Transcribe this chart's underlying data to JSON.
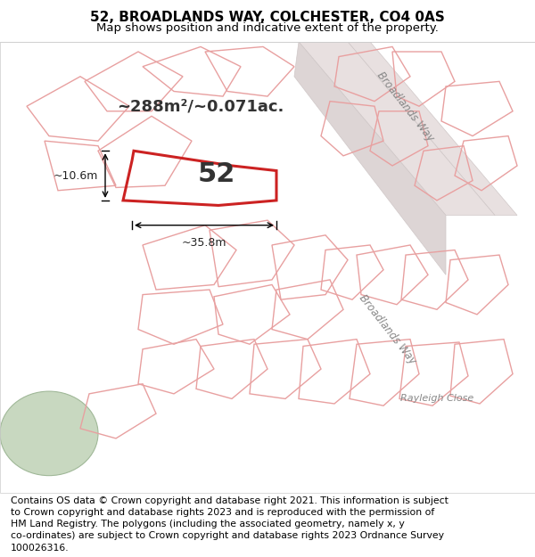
{
  "title_line1": "52, BROADLANDS WAY, COLCHESTER, CO4 0AS",
  "title_line2": "Map shows position and indicative extent of the property.",
  "footer_text": "Contains OS data © Crown copyright and database right 2021. This information is subject\nto Crown copyright and database rights 2023 and is reproduced with the permission of\nHM Land Registry. The polygons (including the associated geometry, namely x, y\nco-ordinates) are subject to Crown copyright and database rights 2023 Ordnance Survey\n100026316.",
  "area_text": "~288m²/~0.071ac.",
  "plot_number": "52",
  "dim_width": "~35.8m",
  "dim_height": "~10.6m",
  "background_color": "#f0efef",
  "map_bg": "#f5f4f4",
  "highlight_color": "#cc2222",
  "neighbor_color": "#e8a0a0",
  "road_label1": "Broadlands Way",
  "road_label2": "Broadlands Way",
  "road_label3": "Rayleigh Close",
  "title_fontsize": 11,
  "subtitle_fontsize": 9.5,
  "footer_fontsize": 7.8
}
